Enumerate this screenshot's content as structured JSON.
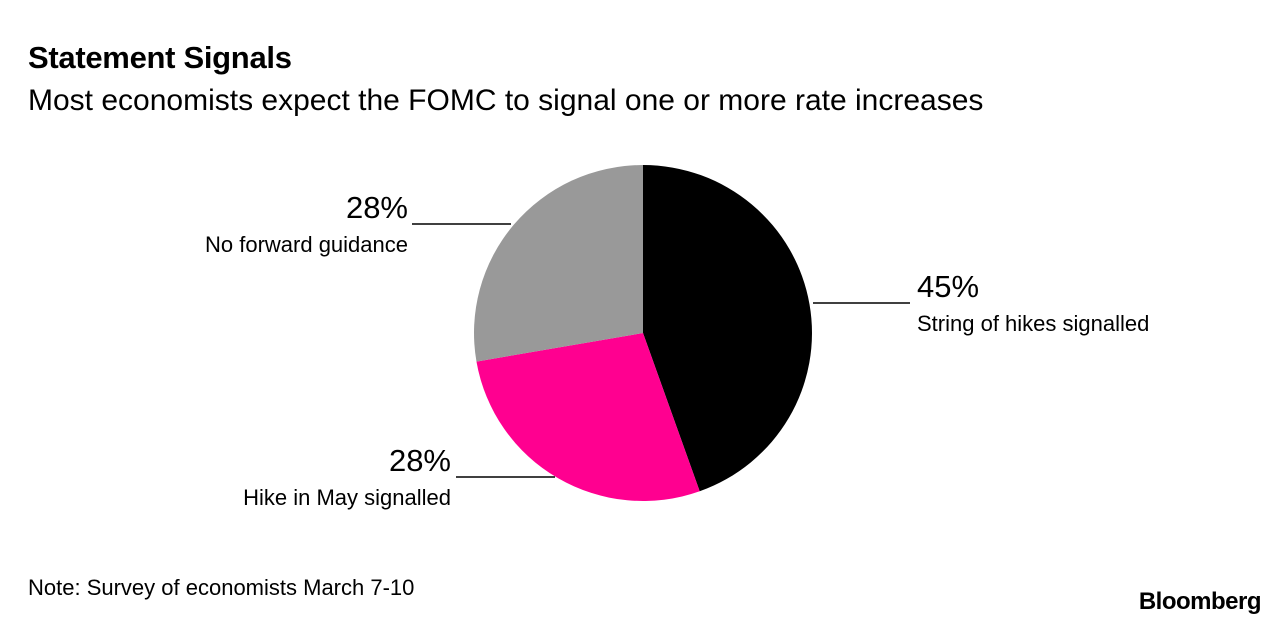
{
  "header": {
    "title": "Statement Signals",
    "subtitle": "Most economists expect the FOMC to signal one or more rate increases"
  },
  "footer": {
    "note": "Note: Survey of economists March 7-10",
    "source": "Bloomberg"
  },
  "chart_data": {
    "type": "pie",
    "title": "Statement Signals",
    "subtitle": "Most economists expect the FOMC to signal one or more rate increases",
    "slices": [
      {
        "label": "String of hikes signalled",
        "value": 45,
        "value_label": "45%",
        "color": "#000000"
      },
      {
        "label": "Hike in May signalled",
        "value": 28,
        "value_label": "28%",
        "color": "#ff0090"
      },
      {
        "label": "No forward guidance",
        "value": 28,
        "value_label": "28%",
        "color": "#999999"
      }
    ],
    "start_angle": "12 o'clock",
    "direction": "clockwise"
  }
}
